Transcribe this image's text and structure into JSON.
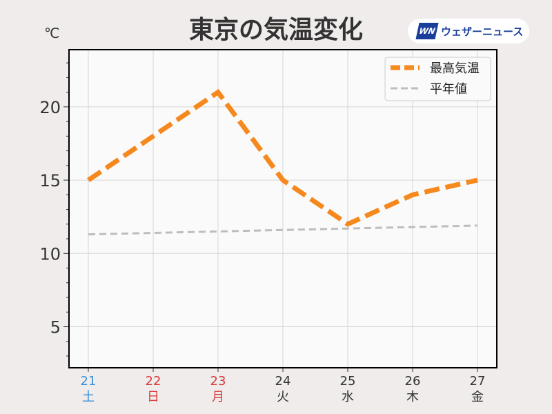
{
  "header": {
    "title": "東京の気温変化",
    "unit": "℃"
  },
  "logo": {
    "mark": "WN",
    "text": "ウェザーニュース",
    "color": "#1a3f9a"
  },
  "chart_data": {
    "type": "line",
    "title": "東京の気温変化",
    "ylabel": "℃",
    "x": [
      "21",
      "22",
      "23",
      "24",
      "25",
      "26",
      "27"
    ],
    "x_weekdays": [
      "土",
      "日",
      "月",
      "火",
      "水",
      "木",
      "金"
    ],
    "x_label_colors": [
      "#3a8fd8",
      "#d83a3a",
      "#d83a3a",
      "#333333",
      "#333333",
      "#333333",
      "#333333"
    ],
    "ylim": [
      2.2,
      23.9
    ],
    "yticks": [
      5,
      10,
      15,
      20
    ],
    "grid": true,
    "legend_position": "top-right",
    "series": [
      {
        "name": "最高気温",
        "values": [
          15,
          18,
          21,
          15,
          12,
          14,
          15
        ],
        "color": "#f5891e",
        "style": "dashed-thick"
      },
      {
        "name": "平年値",
        "values": [
          11.3,
          11.4,
          11.5,
          11.6,
          11.7,
          11.8,
          11.9
        ],
        "color": "#bdbdbd",
        "style": "dashed"
      }
    ]
  }
}
